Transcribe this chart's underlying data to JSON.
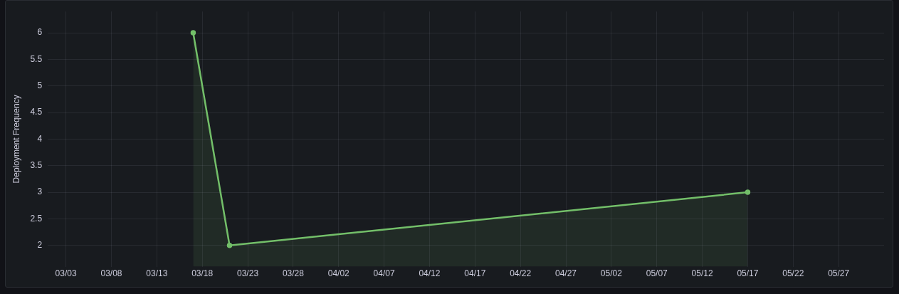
{
  "chart_data": {
    "type": "area",
    "ylabel": "Deployment Frequency",
    "x": [
      "--03-17",
      "--03-21",
      "--05-17"
    ],
    "series": [
      {
        "color": "#73bf69",
        "values": [
          6,
          2,
          3
        ]
      }
    ],
    "xlim": [
      "--03-01",
      "--06-01"
    ],
    "xticks": [
      {
        "value": "--03-03",
        "label": "03/03"
      },
      {
        "value": "--03-08",
        "label": "03/08"
      },
      {
        "value": "--03-13",
        "label": "03/13"
      },
      {
        "value": "--03-18",
        "label": "03/18"
      },
      {
        "value": "--03-23",
        "label": "03/23"
      },
      {
        "value": "--03-28",
        "label": "03/28"
      },
      {
        "value": "--04-02",
        "label": "04/02"
      },
      {
        "value": "--04-07",
        "label": "04/07"
      },
      {
        "value": "--04-12",
        "label": "04/12"
      },
      {
        "value": "--04-17",
        "label": "04/17"
      },
      {
        "value": "--04-22",
        "label": "04/22"
      },
      {
        "value": "--04-27",
        "label": "04/27"
      },
      {
        "value": "--05-02",
        "label": "05/02"
      },
      {
        "value": "--05-07",
        "label": "05/07"
      },
      {
        "value": "--05-12",
        "label": "05/12"
      },
      {
        "value": "--05-17",
        "label": "05/17"
      },
      {
        "value": "--05-22",
        "label": "05/22"
      },
      {
        "value": "--05-27",
        "label": "05/27"
      }
    ],
    "ylim": [
      1.6,
      6.4
    ],
    "yticks": [
      2,
      2.5,
      3,
      3.5,
      4,
      4.5,
      5,
      5.5,
      6
    ],
    "grid": true,
    "legend": false,
    "marker": "circle",
    "line_style": "solid"
  }
}
